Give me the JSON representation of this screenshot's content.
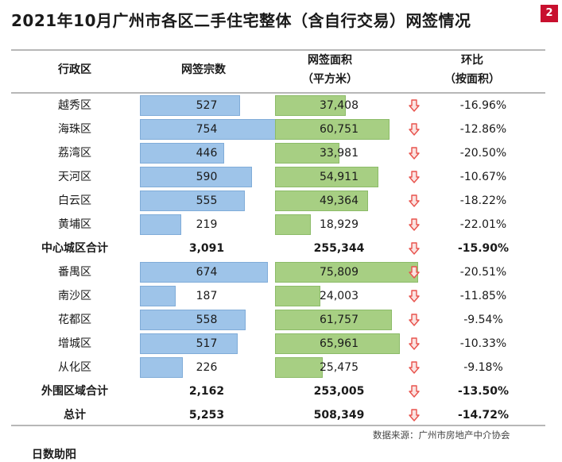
{
  "title": "2021年10月广州市各区二手住宅整体（含自行交易）网签情况",
  "page_badge": "2",
  "headers": {
    "district": "行政区",
    "units": "网签宗数",
    "area_line1": "网签面积",
    "area_line2": "（平方米）",
    "change_line1": "环比",
    "change_line2": "（按面积）"
  },
  "chart_data": {
    "type": "table",
    "columns": [
      "行政区",
      "网签宗数",
      "网签面积（平方米）",
      "环比（按面积）"
    ],
    "rows": [
      {
        "district": "越秀区",
        "units": "527",
        "area": "37,408",
        "change": "-16.96%",
        "units_value": 527,
        "area_value": 37408,
        "bold": false
      },
      {
        "district": "海珠区",
        "units": "754",
        "area": "60,751",
        "change": "-12.86%",
        "units_value": 754,
        "area_value": 60751,
        "bold": false
      },
      {
        "district": "荔湾区",
        "units": "446",
        "area": "33,981",
        "change": "-20.50%",
        "units_value": 446,
        "area_value": 33981,
        "bold": false
      },
      {
        "district": "天河区",
        "units": "590",
        "area": "54,911",
        "change": "-10.67%",
        "units_value": 590,
        "area_value": 54911,
        "bold": false
      },
      {
        "district": "白云区",
        "units": "555",
        "area": "49,364",
        "change": "-18.22%",
        "units_value": 555,
        "area_value": 49364,
        "bold": false
      },
      {
        "district": "黄埔区",
        "units": "219",
        "area": "18,929",
        "change": "-22.01%",
        "units_value": 219,
        "area_value": 18929,
        "bold": false
      },
      {
        "district": "中心城区合计",
        "units": "3,091",
        "area": "255,344",
        "change": "-15.90%",
        "bold": true
      },
      {
        "district": "番禺区",
        "units": "674",
        "area": "75,809",
        "change": "-20.51%",
        "units_value": 674,
        "area_value": 75809,
        "bold": false
      },
      {
        "district": "南沙区",
        "units": "187",
        "area": "24,003",
        "change": "-11.85%",
        "units_value": 187,
        "area_value": 24003,
        "bold": false
      },
      {
        "district": "花都区",
        "units": "558",
        "area": "61,757",
        "change": "-9.54%",
        "units_value": 558,
        "area_value": 61757,
        "bold": false
      },
      {
        "district": "增城区",
        "units": "517",
        "area": "65,961",
        "change": "-10.33%",
        "units_value": 517,
        "area_value": 65961,
        "bold": false
      },
      {
        "district": "从化区",
        "units": "226",
        "area": "25,475",
        "change": "-9.18%",
        "units_value": 226,
        "area_value": 25475,
        "bold": false
      },
      {
        "district": "外围区域合计",
        "units": "2,162",
        "area": "253,005",
        "change": "-13.50%",
        "bold": true
      },
      {
        "district": "总计",
        "units": "5,253",
        "area": "508,349",
        "change": "-14.72%",
        "bold": true
      }
    ],
    "units_bar_max": 754,
    "area_bar_max": 75809
  },
  "colors": {
    "units_bar": "#9ec4e9",
    "area_bar": "#a7cf83",
    "down_arrow": "#e8534d",
    "badge": "#c8102e"
  },
  "icons": {
    "change_direction": "down-arrow-icon"
  },
  "source": "数据来源：广州市房地产中介协会",
  "stray_text": "日数助阳"
}
